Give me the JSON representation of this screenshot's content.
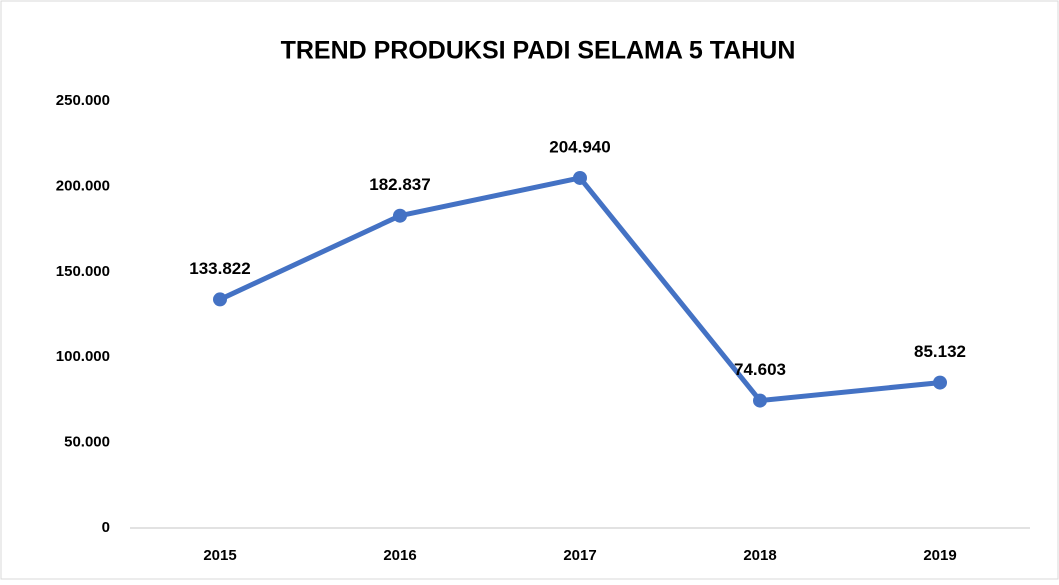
{
  "chart_data": {
    "type": "line",
    "title": "TREND PRODUKSI PADI SELAMA 5 TAHUN",
    "categories": [
      "2015",
      "2016",
      "2017",
      "2018",
      "2019"
    ],
    "values": [
      133822,
      182837,
      204940,
      74603,
      85132
    ],
    "value_labels": [
      "133.822",
      "182.837",
      "204.940",
      "74.603",
      "85.132"
    ],
    "color": "#4472c4",
    "ylim": [
      0,
      250000
    ],
    "yticks": [
      0,
      {
        "value": 50000,
        "label": "50.000"
      },
      {
        "value": 100000,
        "label": "100.000"
      },
      {
        "value": 150000,
        "label": "150.000"
      },
      {
        "value": 200000,
        "label": "200.000"
      },
      {
        "value": 250000,
        "label": "250.000"
      }
    ],
    "grid": false
  }
}
